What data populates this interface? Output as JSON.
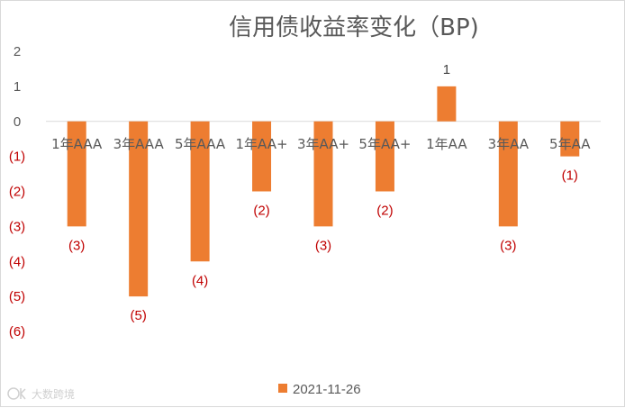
{
  "chart_data": {
    "type": "bar",
    "title": "信用债收益率变化（BP)",
    "categories": [
      "1年AAA",
      "3年AAA",
      "5年AAA",
      "1年AA+",
      "3年AA+",
      "5年AA+",
      "1年AA",
      "3年AA",
      "5年AA"
    ],
    "series": [
      {
        "name": "2021-11-26",
        "values": [
          -3,
          -5,
          -4,
          -2,
          -3,
          -2,
          1,
          -3,
          -1
        ],
        "data_labels": [
          "(3)",
          "(5)",
          "(4)",
          "(2)",
          "(3)",
          "(2)",
          "1",
          "(3)",
          "(1)"
        ]
      }
    ],
    "y_ticks": [
      {
        "value": 2,
        "label": "2"
      },
      {
        "value": 1,
        "label": "1"
      },
      {
        "value": 0,
        "label": "0"
      },
      {
        "value": -1,
        "label": "(1)"
      },
      {
        "value": -2,
        "label": "(2)"
      },
      {
        "value": -3,
        "label": "(3)"
      },
      {
        "value": -4,
        "label": "(4)"
      },
      {
        "value": -5,
        "label": "(5)"
      },
      {
        "value": -6,
        "label": "(6)"
      }
    ],
    "ylim": [
      -6,
      2
    ],
    "xlabel": "",
    "ylabel": "",
    "grid": false,
    "legend": "bottom",
    "colors": {
      "bar": "#ED7D31",
      "negative_label": "#C00000",
      "positive_label": "#404040",
      "axis_text": "#595959",
      "zero_line": "#d9d9d9"
    }
  },
  "watermark": {
    "icon": "logo-icon",
    "text": "大数跨境"
  }
}
